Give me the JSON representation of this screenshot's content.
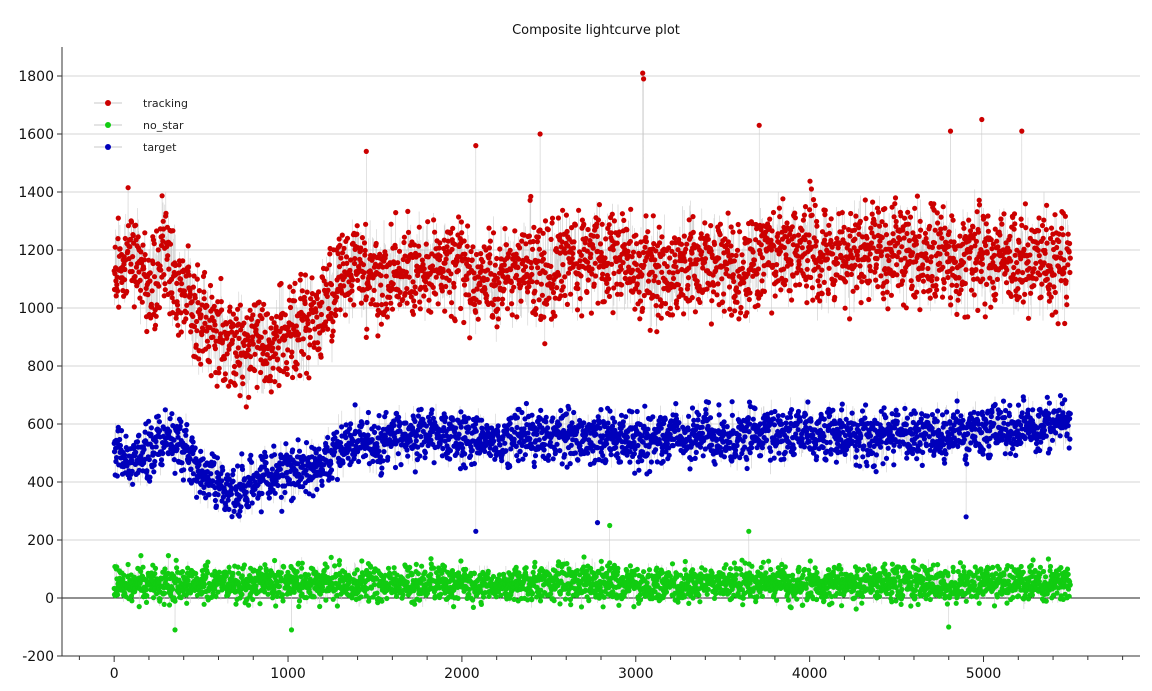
{
  "chart_data": {
    "type": "scatter",
    "title": "Composite lightcurve plot",
    "xlabel": "",
    "ylabel": "",
    "xlim": [
      -300,
      5900
    ],
    "ylim": [
      -200,
      1900
    ],
    "xticks": [
      0,
      1000,
      2000,
      3000,
      4000,
      5000
    ],
    "yticks": [
      -200,
      0,
      200,
      400,
      600,
      800,
      1000,
      1200,
      1400,
      1600,
      1800
    ],
    "grid": true,
    "legend_position": "top-left",
    "x_count": 5500,
    "series": [
      {
        "name": "tracking",
        "color": "#cc0000",
        "line_color": "#c8c8c8",
        "style": "points-with-connecting-line",
        "trend": [
          [
            0,
            1100
          ],
          [
            100,
            1200
          ],
          [
            200,
            1120
          ],
          [
            300,
            1180
          ],
          [
            400,
            1050
          ],
          [
            500,
            950
          ],
          [
            600,
            900
          ],
          [
            700,
            850
          ],
          [
            800,
            870
          ],
          [
            900,
            880
          ],
          [
            1000,
            900
          ],
          [
            1100,
            950
          ],
          [
            1200,
            1000
          ],
          [
            1300,
            1100
          ],
          [
            1400,
            1150
          ],
          [
            1500,
            1100
          ],
          [
            1600,
            1100
          ],
          [
            1700,
            1120
          ],
          [
            1800,
            1150
          ],
          [
            2000,
            1120
          ],
          [
            2200,
            1100
          ],
          [
            2400,
            1150
          ],
          [
            2600,
            1150
          ],
          [
            2800,
            1180
          ],
          [
            3000,
            1150
          ],
          [
            3200,
            1130
          ],
          [
            3400,
            1150
          ],
          [
            3600,
            1120
          ],
          [
            3800,
            1200
          ],
          [
            4000,
            1200
          ],
          [
            4200,
            1180
          ],
          [
            4400,
            1200
          ],
          [
            4600,
            1180
          ],
          [
            4800,
            1170
          ],
          [
            5000,
            1180
          ],
          [
            5200,
            1170
          ],
          [
            5400,
            1150
          ],
          [
            5480,
            1150
          ]
        ],
        "noise": 150,
        "spikes": [
          [
            3040,
            1810
          ],
          [
            3045,
            1790
          ],
          [
            4990,
            1650
          ],
          [
            3710,
            1630
          ],
          [
            4810,
            1610
          ],
          [
            5220,
            1610
          ],
          [
            2450,
            1600
          ],
          [
            1450,
            1540
          ],
          [
            2080,
            1560
          ]
        ]
      },
      {
        "name": "no_star",
        "color": "#11cc11",
        "line_color": "#c8c8c8",
        "style": "points-with-connecting-line",
        "trend": [
          [
            0,
            50
          ],
          [
            1000,
            50
          ],
          [
            2000,
            50
          ],
          [
            3000,
            50
          ],
          [
            4000,
            50
          ],
          [
            5000,
            50
          ],
          [
            5480,
            50
          ]
        ],
        "noise": 55,
        "spikes": [
          [
            2850,
            250
          ],
          [
            3650,
            230
          ],
          [
            4800,
            -100
          ],
          [
            350,
            -110
          ],
          [
            1020,
            -110
          ]
        ]
      },
      {
        "name": "target",
        "color": "#0000bb",
        "line_color": "#c8c8c8",
        "style": "points-with-connecting-line",
        "trend": [
          [
            0,
            500
          ],
          [
            100,
            470
          ],
          [
            200,
            500
          ],
          [
            300,
            560
          ],
          [
            400,
            520
          ],
          [
            500,
            420
          ],
          [
            600,
            380
          ],
          [
            700,
            350
          ],
          [
            800,
            400
          ],
          [
            900,
            430
          ],
          [
            1000,
            420
          ],
          [
            1100,
            450
          ],
          [
            1200,
            460
          ],
          [
            1300,
            520
          ],
          [
            1400,
            540
          ],
          [
            1500,
            530
          ],
          [
            1600,
            550
          ],
          [
            1700,
            560
          ],
          [
            1800,
            560
          ],
          [
            2000,
            560
          ],
          [
            2200,
            540
          ],
          [
            2400,
            560
          ],
          [
            2600,
            560
          ],
          [
            2800,
            560
          ],
          [
            3000,
            550
          ],
          [
            3200,
            560
          ],
          [
            3400,
            560
          ],
          [
            3600,
            550
          ],
          [
            3800,
            570
          ],
          [
            4000,
            570
          ],
          [
            4200,
            560
          ],
          [
            4400,
            560
          ],
          [
            4600,
            560
          ],
          [
            4800,
            570
          ],
          [
            5000,
            580
          ],
          [
            5200,
            580
          ],
          [
            5400,
            600
          ],
          [
            5480,
            610
          ]
        ],
        "noise": 80,
        "spikes": [
          [
            2080,
            230
          ],
          [
            4900,
            280
          ],
          [
            2780,
            260
          ]
        ]
      }
    ]
  }
}
